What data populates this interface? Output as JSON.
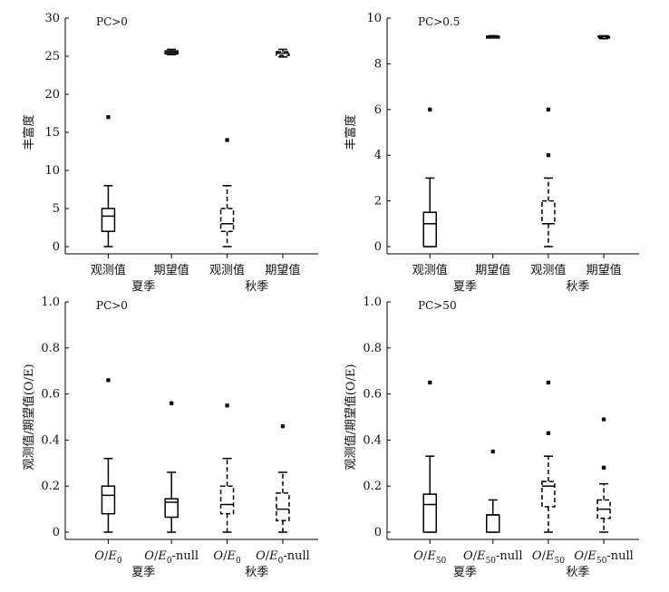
{
  "chart_data": [
    {
      "type": "boxplot",
      "annotation": "PC>0",
      "ylabel": "丰富度",
      "ylim": [
        0,
        30
      ],
      "yticks": [
        "0",
        "5",
        "10",
        "15",
        "20",
        "25",
        "30"
      ],
      "categories": [
        {
          "label": "观测值",
          "sub": ""
        },
        {
          "label": "期望值",
          "sub": ""
        },
        {
          "label": "观测值",
          "sub": ""
        },
        {
          "label": "期望值",
          "sub": ""
        }
      ],
      "groups": [
        "夏季",
        "秋季"
      ],
      "boxes": [
        {
          "min": 0,
          "q1": 2,
          "median": 4,
          "q3": 5,
          "max": 8,
          "outliers": [
            17
          ],
          "style": "solid"
        },
        {
          "min": 25.2,
          "q1": 25.3,
          "median": 25.5,
          "q3": 25.7,
          "max": 25.9,
          "outliers": [],
          "style": "solid"
        },
        {
          "min": 0,
          "q1": 2,
          "median": 3,
          "q3": 5,
          "max": 8,
          "outliers": [
            14
          ],
          "style": "dashed"
        },
        {
          "min": 24.9,
          "q1": 25.1,
          "median": 25.4,
          "q3": 25.6,
          "max": 25.9,
          "outliers": [],
          "style": "dashed"
        }
      ]
    },
    {
      "type": "boxplot",
      "annotation": "PC>0.5",
      "ylabel": "丰富度",
      "ylim": [
        0,
        10
      ],
      "yticks": [
        "0",
        "2",
        "4",
        "6",
        "8",
        "10"
      ],
      "categories": [
        {
          "label": "观测值",
          "sub": ""
        },
        {
          "label": "期望值",
          "sub": ""
        },
        {
          "label": "观测值",
          "sub": ""
        },
        {
          "label": "期望值",
          "sub": ""
        }
      ],
      "groups": [
        "夏季",
        "秋季"
      ],
      "boxes": [
        {
          "min": 0,
          "q1": 0,
          "median": 1,
          "q3": 1.5,
          "max": 3,
          "outliers": [
            6
          ],
          "style": "solid"
        },
        {
          "min": 9.15,
          "q1": 9.17,
          "median": 9.19,
          "q3": 9.21,
          "max": 9.23,
          "outliers": [],
          "style": "solid"
        },
        {
          "min": 0,
          "q1": 1,
          "median": 1,
          "q3": 2,
          "max": 3,
          "outliers": [
            4,
            6
          ],
          "style": "dashed"
        },
        {
          "min": 9.1,
          "q1": 9.14,
          "median": 9.18,
          "q3": 9.21,
          "max": 9.23,
          "outliers": [],
          "style": "dashed"
        }
      ]
    },
    {
      "type": "boxplot",
      "annotation": "PC>0",
      "ylabel": "观测值/期望值(O/E)",
      "ylim": [
        0,
        1.0
      ],
      "yticks": [
        "0",
        "0.2",
        "0.4",
        "0.6",
        "0.8",
        "1.0"
      ],
      "categories": [
        {
          "label": "O/E",
          "sub": "0",
          "suffix": ""
        },
        {
          "label": "O/E",
          "sub": "0",
          "suffix": "-null"
        },
        {
          "label": "O/E",
          "sub": "0",
          "suffix": ""
        },
        {
          "label": "O/E",
          "sub": "0",
          "suffix": "-null"
        }
      ],
      "groups": [
        "夏季",
        "秋季"
      ],
      "boxes": [
        {
          "min": 0,
          "q1": 0.08,
          "median": 0.16,
          "q3": 0.2,
          "max": 0.32,
          "outliers": [
            0.66
          ],
          "style": "solid"
        },
        {
          "min": 0,
          "q1": 0.065,
          "median": 0.13,
          "q3": 0.145,
          "max": 0.26,
          "outliers": [
            0.56
          ],
          "style": "solid"
        },
        {
          "min": 0,
          "q1": 0.08,
          "median": 0.12,
          "q3": 0.2,
          "max": 0.32,
          "outliers": [
            0.55
          ],
          "style": "dashed"
        },
        {
          "min": 0,
          "q1": 0.05,
          "median": 0.1,
          "q3": 0.17,
          "max": 0.26,
          "outliers": [
            0.46
          ],
          "style": "dashed"
        }
      ]
    },
    {
      "type": "boxplot",
      "annotation": "PC>50",
      "ylabel": "观测值/期望值(O/E)",
      "ylim": [
        0,
        1.0
      ],
      "yticks": [
        "0",
        "0.2",
        "0.4",
        "0.6",
        "0.8",
        "1.0"
      ],
      "categories": [
        {
          "label": "O/E",
          "sub": "50",
          "suffix": ""
        },
        {
          "label": "O/E",
          "sub": "50",
          "suffix": "-null"
        },
        {
          "label": "O/E",
          "sub": "50",
          "suffix": ""
        },
        {
          "label": "O/E",
          "sub": "50",
          "suffix": "-null"
        }
      ],
      "groups": [
        "夏季",
        "秋季"
      ],
      "boxes": [
        {
          "min": 0,
          "q1": 0,
          "median": 0.12,
          "q3": 0.165,
          "max": 0.33,
          "outliers": [
            0.65
          ],
          "style": "solid"
        },
        {
          "min": 0,
          "q1": 0,
          "median": 0.075,
          "q3": 0.075,
          "max": 0.14,
          "outliers": [
            0.35
          ],
          "style": "solid"
        },
        {
          "min": 0,
          "q1": 0.11,
          "median": 0.2,
          "q3": 0.22,
          "max": 0.33,
          "outliers": [
            0.43,
            0.65
          ],
          "style": "dashed"
        },
        {
          "min": 0,
          "q1": 0.06,
          "median": 0.1,
          "q3": 0.14,
          "max": 0.21,
          "outliers": [
            0.28,
            0.49
          ],
          "style": "dashed"
        }
      ]
    }
  ]
}
